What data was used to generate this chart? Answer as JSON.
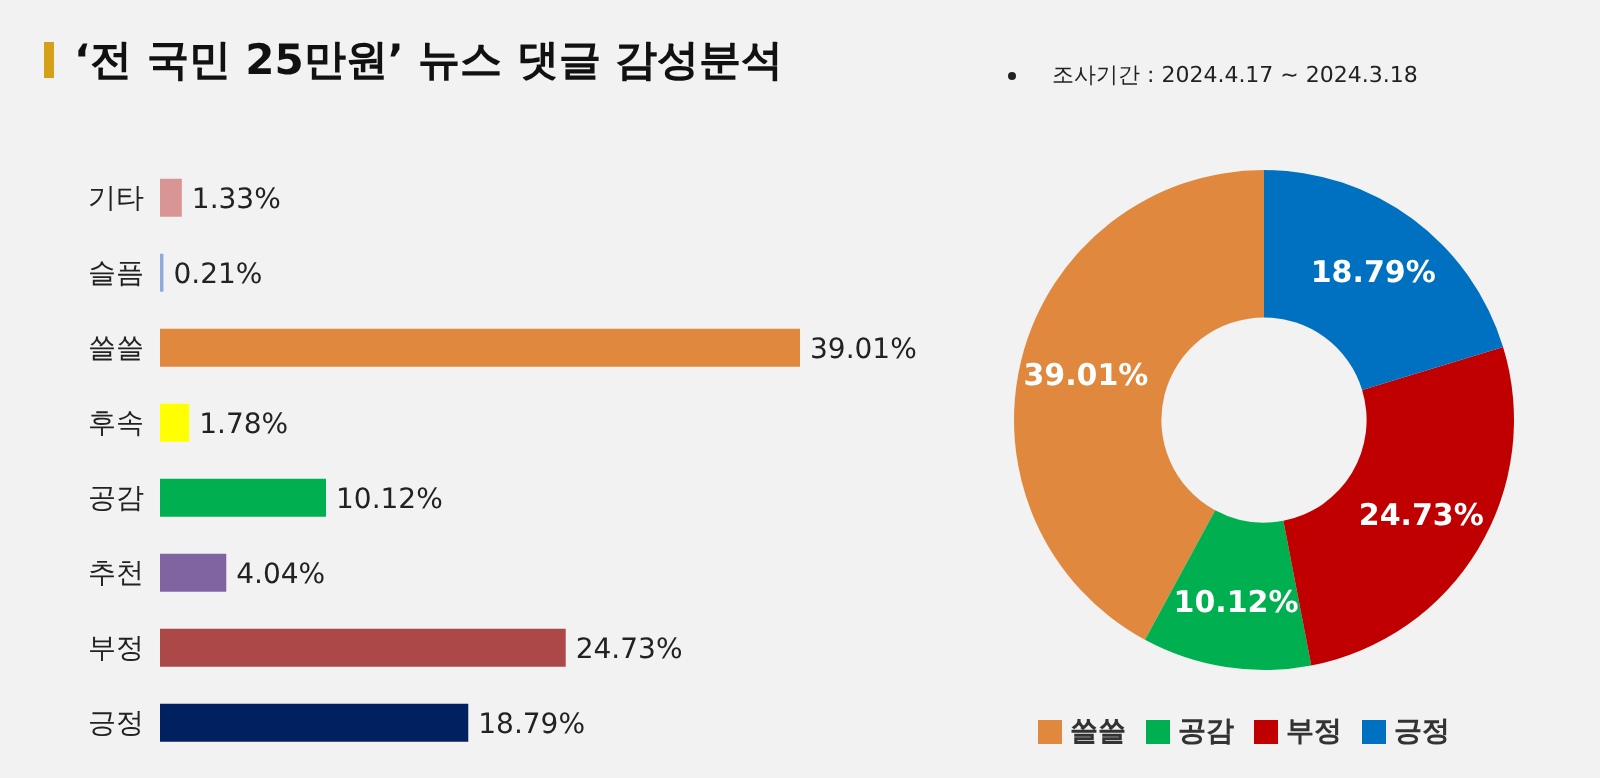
{
  "chart_data": [
    {
      "type": "bar",
      "orientation": "horizontal",
      "title": "‘전 국민 25만원’ 뉴스 댓글 감성분석",
      "categories": [
        "기타",
        "슬픔",
        "쓸쓸",
        "후속",
        "공감",
        "추천",
        "부정",
        "긍정"
      ],
      "values": [
        1.33,
        0.21,
        39.01,
        1.78,
        10.12,
        4.04,
        24.73,
        18.79
      ],
      "colors": [
        "#d99594",
        "#8eaadb",
        "#e0883e",
        "#ffff00",
        "#00b050",
        "#8064a2",
        "#ac4848",
        "#002060"
      ],
      "value_labels": [
        "1.33%",
        "0.21%",
        "39.01%",
        "1.78%",
        "10.12%",
        "4.04%",
        "24.73%",
        "18.79%"
      ]
    },
    {
      "type": "donut",
      "annotations": [
        "조사기간 : 2024.4.17 ~ 2024.3.18"
      ],
      "categories": [
        "쓸쓸",
        "공감",
        "부정",
        "긍정"
      ],
      "values": [
        39.01,
        10.12,
        24.73,
        18.79
      ],
      "colors": [
        "#e0883e",
        "#00b050",
        "#c00000",
        "#0070c0"
      ],
      "value_labels": [
        "39.01%",
        "10.12%",
        "24.73%",
        "18.79%"
      ],
      "legend": "bottom"
    }
  ]
}
